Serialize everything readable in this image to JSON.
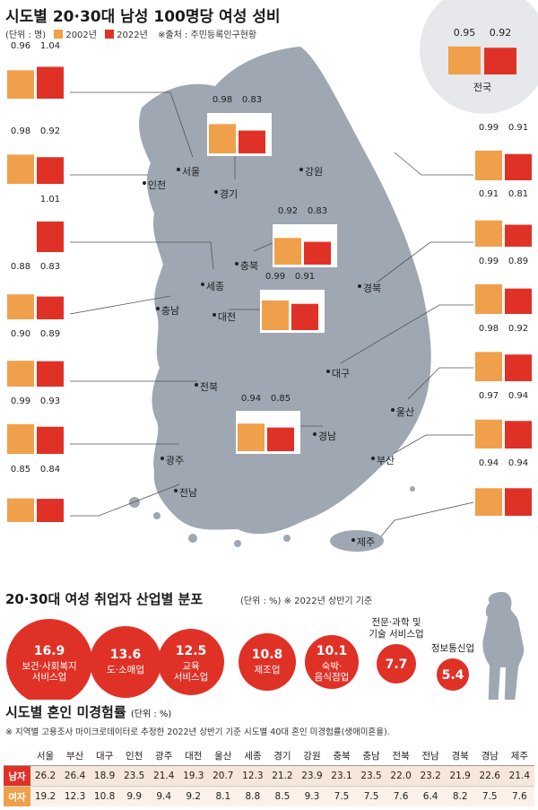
{
  "header": {
    "title": "시도별 20·30대 남성 100명당 여성 성비",
    "unit": "(단위 : 명)",
    "legend_2002": "2002년",
    "legend_2022": "2022년",
    "source": "※출처 : 주민등록인구현황"
  },
  "colors": {
    "y2002": "#f0a04b",
    "y2022": "#e03127",
    "map": "#9ea7b2",
    "accent": "#e03127"
  },
  "national": {
    "name": "전국",
    "v2002": "0.95",
    "v2022": "0.92"
  },
  "chart_data": [
    {
      "type": "bar",
      "title": "시도별 20·30대 남성 100명당 여성 성비",
      "series": [
        {
          "name": "2002년",
          "values": [
            0.96,
            0.98,
            null,
            0.88,
            0.9,
            0.99,
            0.85,
            0.98,
            0.92,
            0.99,
            0.94,
            0.99,
            0.91,
            0.99,
            0.98,
            0.97,
            0.94,
            0.95
          ]
        },
        {
          "name": "2022년",
          "values": [
            1.04,
            0.92,
            1.01,
            0.83,
            0.89,
            0.93,
            0.84,
            0.83,
            0.83,
            0.91,
            0.85,
            0.91,
            0.81,
            0.89,
            0.92,
            0.94,
            0.94,
            0.92
          ]
        }
      ],
      "categories": [
        "서울",
        "인천",
        "세종",
        "충남",
        "전북",
        "광주",
        "전남",
        "경기",
        "충북",
        "대전",
        "경남",
        "강원",
        "경북",
        "대구",
        "울산",
        "부산",
        "제주",
        "전국"
      ]
    },
    {
      "type": "bubble",
      "title": "20·30대 여성 취업자 산업별 분포",
      "unit": "(단위 : %)",
      "note": "※ 2022년 상반기 기준",
      "categories": [
        "보건·사회복지 서비스업",
        "도·소매업",
        "교육 서비스업",
        "제조업",
        "숙박·음식점업",
        "전문·과학 및 기술 서비스업",
        "정보통신업"
      ],
      "values": [
        16.9,
        13.6,
        12.5,
        10.8,
        10.1,
        7.7,
        5.4
      ]
    },
    {
      "type": "table",
      "title": "시도별 혼인 미경험률",
      "unit": "(단위 : %)",
      "note": "※ 지역별 고용조사 마이크로데이터로 추정한 2022년 상반기 기준 시도별 40대 혼인 미경험률(생애미혼율).",
      "columns": [
        "서울",
        "부산",
        "대구",
        "인천",
        "광주",
        "대전",
        "울산",
        "세종",
        "경기",
        "강원",
        "충북",
        "충남",
        "전북",
        "전남",
        "경북",
        "경남",
        "제주"
      ],
      "rows": [
        {
          "label": "남자",
          "values": [
            "26.2",
            "26.4",
            "18.9",
            "23.5",
            "21.4",
            "19.3",
            "20.7",
            "12.3",
            "21.2",
            "23.9",
            "23.1",
            "23.5",
            "22.0",
            "23.2",
            "21.9",
            "22.6",
            "21.4"
          ]
        },
        {
          "label": "여자",
          "values": [
            "19.2",
            "12.3",
            "10.8",
            "9.9",
            "9.4",
            "9.2",
            "8.1",
            "8.8",
            "8.5",
            "9.3",
            "7.5",
            "7.5",
            "7.6",
            "6.4",
            "8.2",
            "7.5",
            "7.6"
          ]
        }
      ]
    }
  ],
  "regions": [
    {
      "name": "서울",
      "v2002": "0.96",
      "v2022": "1.04"
    },
    {
      "name": "인천",
      "v2002": "0.98",
      "v2022": "0.92"
    },
    {
      "name": "세종",
      "v2002": "",
      "v2022": "1.01"
    },
    {
      "name": "충남",
      "v2002": "0.88",
      "v2022": "0.83"
    },
    {
      "name": "전북",
      "v2002": "0.90",
      "v2022": "0.89"
    },
    {
      "name": "광주",
      "v2002": "0.99",
      "v2022": "0.93"
    },
    {
      "name": "전남",
      "v2002": "0.85",
      "v2022": "0.84"
    },
    {
      "name": "경기",
      "v2002": "0.98",
      "v2022": "0.83"
    },
    {
      "name": "충북",
      "v2002": "0.92",
      "v2022": "0.83"
    },
    {
      "name": "대전",
      "v2002": "0.99",
      "v2022": "0.91"
    },
    {
      "name": "경남",
      "v2002": "0.94",
      "v2022": "0.85"
    },
    {
      "name": "강원",
      "v2002": "0.99",
      "v2022": "0.91"
    },
    {
      "name": "경북",
      "v2002": "0.91",
      "v2022": "0.81"
    },
    {
      "name": "대구",
      "v2002": "0.99",
      "v2022": "0.89"
    },
    {
      "name": "울산",
      "v2002": "0.98",
      "v2022": "0.92"
    },
    {
      "name": "부산",
      "v2002": "0.97",
      "v2022": "0.94"
    },
    {
      "name": "제주",
      "v2002": "0.94",
      "v2022": "0.94"
    }
  ],
  "industry": {
    "title": "20·30대 여성 취업자 산업별 분포",
    "unit": "(단위 : %)",
    "note": "※ 2022년 상반기 기준",
    "items": [
      {
        "value": "16.9",
        "label": "보건·사회복지\n서비스업"
      },
      {
        "value": "13.6",
        "label": "도·소매업"
      },
      {
        "value": "12.5",
        "label": "교육\n서비스업"
      },
      {
        "value": "10.8",
        "label": "제조업"
      },
      {
        "value": "10.1",
        "label": "숙박·\n음식점업"
      },
      {
        "value": "7.7",
        "label": "전문·과학 및\n기술 서비스업"
      },
      {
        "value": "5.4",
        "label": "정보통신업"
      }
    ]
  },
  "marriage": {
    "title": "시도별 혼인 미경험률",
    "unit": "(단위 : %)",
    "note": "※ 지역별 고용조사 마이크로데이터로 추정한 2022년 상반기 기준 시도별 40대 혼인 미경험률(생애미혼율).",
    "male_label": "남자",
    "female_label": "여자"
  }
}
